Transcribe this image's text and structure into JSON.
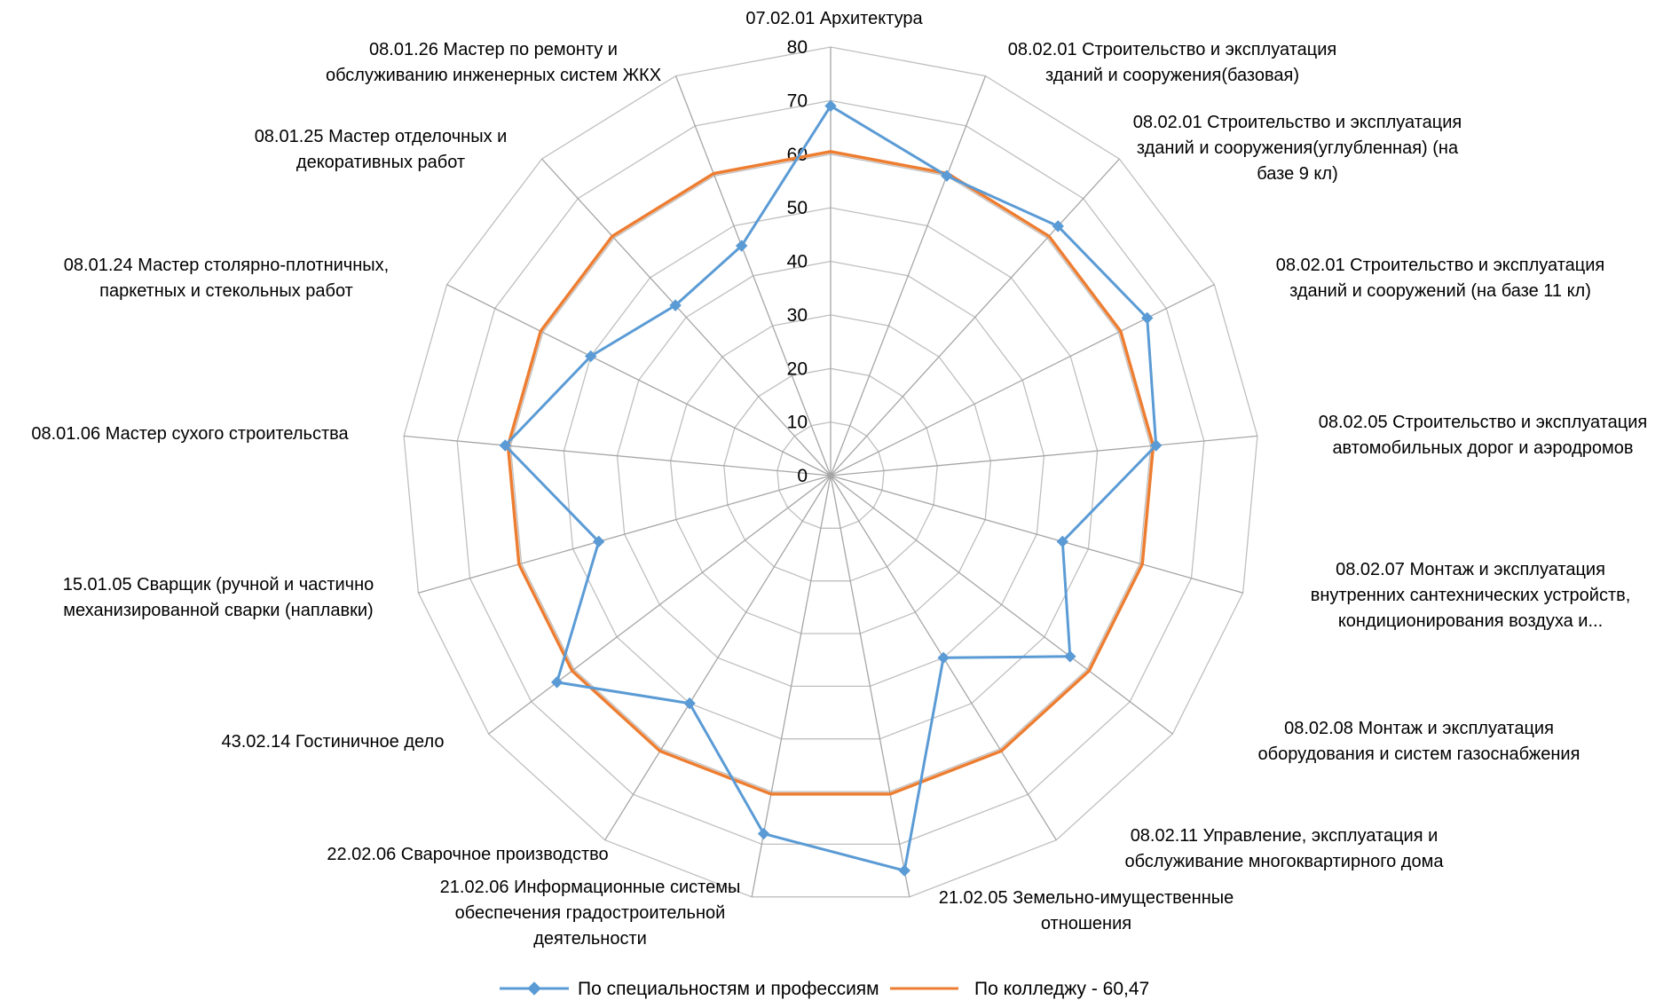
{
  "chart_data": {
    "type": "radar",
    "title": "",
    "categories": [
      [
        "07.02.01 Архитектура"
      ],
      [
        "08.02.01 Строительство и эксплуатация",
        "зданий и сооружения(базовая)"
      ],
      [
        "08.02.01 Строительство и эксплуатация",
        "зданий и сооружения(углубленная) (на",
        "базе 9 кл)"
      ],
      [
        "08.02.01 Строительство и эксплуатация",
        "зданий и сооружений (на базе 11 кл)"
      ],
      [
        "08.02.05 Строительство и эксплуатация",
        "автомобильных дорог и аэродромов"
      ],
      [
        "08.02.07 Монтаж и эксплуатация",
        "внутренних сантехнических устройств,",
        "кондиционирования воздуха и..."
      ],
      [
        "08.02.08 Монтаж и эксплуатация",
        "оборудования и систем газоснабжения"
      ],
      [
        "08.02.11 Управление, эксплуатация и",
        "обслуживание многоквартирного дома"
      ],
      [
        "21.02.05 Земельно-имущественные",
        "отношения"
      ],
      [
        "21.02.06 Информационные системы",
        "обеспечения градостроительной",
        "деятельности"
      ],
      [
        "22.02.06 Сварочное производство"
      ],
      [
        "43.02.14 Гостиничное дело"
      ],
      [
        "15.01.05 Сварщик (ручной и частично",
        "механизированной сварки (наплавки)"
      ],
      [
        "08.01.06 Мастер сухого строительства"
      ],
      [
        "08.01.24 Мастер столярно-плотничных,",
        "паркетных и стекольных работ"
      ],
      [
        "08.01.25 Мастер отделочных и",
        "декоративных работ"
      ],
      [
        "08.01.26 Мастер по ремонту и",
        "обслуживанию инженерных систем ЖКХ"
      ]
    ],
    "axis": {
      "min": 0,
      "max": 80,
      "step": 10,
      "ticks": [
        "0",
        "10",
        "20",
        "30",
        "40",
        "50",
        "60",
        "70",
        "80"
      ]
    },
    "grid": true,
    "legend_position": "bottom",
    "series": [
      {
        "name": "По специальностям и профессиям",
        "color": "#5b9bd5",
        "marker": "diamond",
        "values": [
          69,
          60,
          63,
          66,
          61,
          45,
          56,
          40,
          75,
          68,
          50,
          64,
          45,
          61,
          50,
          43,
          46
        ]
      },
      {
        "name": "По колледжу - 60,47",
        "color": "#ed7d31",
        "marker": "none",
        "values": [
          60.47,
          60.47,
          60.47,
          60.47,
          60.47,
          60.47,
          60.47,
          60.47,
          60.47,
          60.47,
          60.47,
          60.47,
          60.47,
          60.47,
          60.47,
          60.47,
          60.47
        ]
      }
    ],
    "colors": {
      "grid": "#bfbfbf",
      "spoke": "#a6a6a6"
    }
  }
}
